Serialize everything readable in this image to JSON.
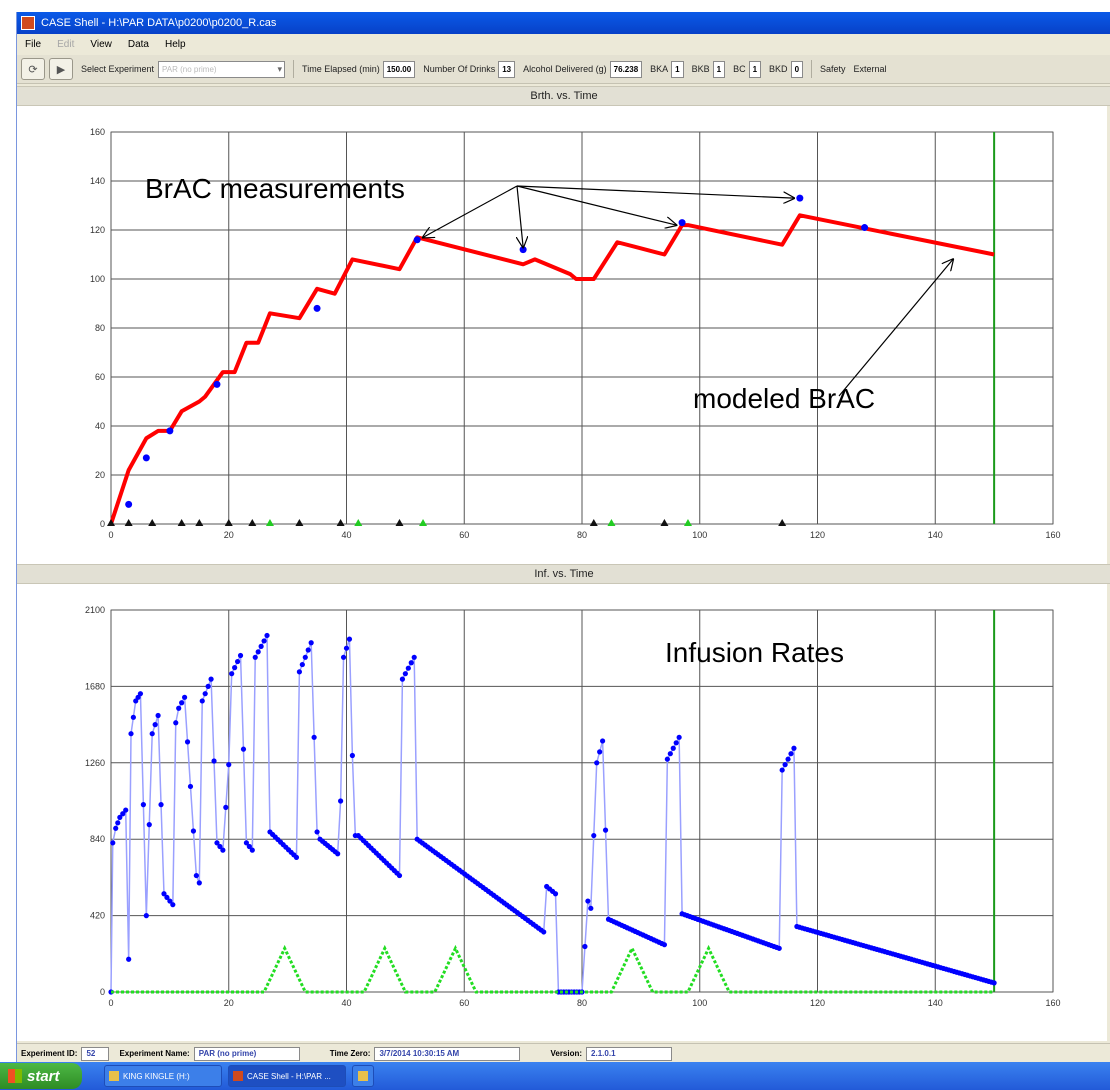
{
  "window": {
    "title": "CASE Shell - H:\\PAR DATA\\p0200\\p0200_R.cas"
  },
  "menu": [
    {
      "label": "File",
      "enabled": true
    },
    {
      "label": "Edit",
      "enabled": false
    },
    {
      "label": "View",
      "enabled": true
    },
    {
      "label": "Data",
      "enabled": true
    },
    {
      "label": "Help",
      "enabled": true
    }
  ],
  "toolbar": {
    "select_experiment_label": "Select Experiment",
    "select_experiment_value": "PAR (no prime)",
    "time_elapsed_label": "Time Elapsed (min)",
    "time_elapsed_value": "150.00",
    "number_of_drinks_label": "Number Of Drinks",
    "number_of_drinks_value": "13",
    "alcohol_delivered_label": "Alcohol Delivered (g)",
    "alcohol_delivered_value": "76.238",
    "bka_label": "BKA",
    "bka_value": "1",
    "bkb_label": "BKB",
    "bkb_value": "1",
    "bc_label": "BC",
    "bc_value": "1",
    "bkd_label": "BKD",
    "bkd_value": "0",
    "safety_label": "Safety",
    "external_label": "External"
  },
  "charts": {
    "top_title": "Brth. vs. Time",
    "bottom_title": "Inf. vs. Time",
    "annotations": {
      "brac_measurements": "BrAC measurements",
      "modeled_brac": "modeled BrAC",
      "infusion_rates": "Infusion Rates"
    }
  },
  "chart_data": [
    {
      "type": "line",
      "title": "Brth. vs. Time",
      "xlim": [
        0,
        160
      ],
      "ylim": [
        0,
        160
      ],
      "xticks": [
        0,
        20,
        40,
        60,
        80,
        100,
        120,
        140,
        160
      ],
      "yticks": [
        0,
        20,
        40,
        60,
        80,
        100,
        120,
        140,
        160
      ],
      "grid": true,
      "marker_line_x": 150,
      "series": [
        {
          "color": "#ff0000",
          "x": [
            0,
            3,
            6,
            8,
            10,
            12,
            15,
            16,
            19,
            21,
            23,
            25,
            27,
            32,
            35,
            38,
            41,
            49,
            52,
            70,
            72,
            78,
            79,
            82,
            86,
            94,
            97,
            98,
            114,
            117,
            150
          ],
          "y": [
            0,
            22,
            35,
            38,
            38,
            46,
            50,
            52,
            62,
            62,
            74,
            74,
            86,
            84,
            96,
            94,
            108,
            104,
            117,
            106,
            108,
            102,
            100,
            100,
            115,
            110,
            122,
            122,
            114,
            126,
            110
          ]
        },
        {
          "color": "#0000ff",
          "x": [
            3,
            6,
            10,
            18,
            35,
            52,
            70,
            97,
            117,
            128
          ],
          "y": [
            8,
            27,
            38,
            57,
            88,
            116,
            112,
            123,
            133,
            121
          ]
        }
      ],
      "event_markers": {
        "black_x": [
          0,
          3,
          7,
          12,
          15,
          20,
          24,
          32,
          39,
          49,
          82,
          94,
          114
        ],
        "green_x": [
          27,
          42,
          53,
          85,
          98
        ]
      }
    },
    {
      "type": "line",
      "title": "Inf. vs. Time",
      "xlim": [
        0,
        160
      ],
      "ylim": [
        0,
        2100
      ],
      "xticks": [
        0,
        20,
        40,
        60,
        80,
        100,
        120,
        140,
        160
      ],
      "yticks": [
        0,
        420,
        840,
        1260,
        1680,
        2100
      ],
      "grid": true,
      "marker_line_x": 150,
      "series": [
        {
          "color": "#0000ff",
          "x": [
            0,
            0.3,
            0.8,
            1.5,
            2.5,
            3,
            3.4,
            4.2,
            5,
            6,
            7,
            8,
            9,
            10.5,
            11,
            11.5,
            12.5,
            14.5,
            15,
            15.5,
            17,
            18,
            19,
            20,
            20.5,
            22,
            23,
            24,
            24.5,
            26.5,
            27,
            31.5,
            32,
            34,
            35,
            35.5,
            38.5,
            39,
            39.5,
            40.5,
            41,
            41.5,
            42,
            49,
            49.5,
            51.5,
            52,
            73.5,
            74,
            75.5,
            76,
            80,
            81,
            81.5,
            82.5,
            83.5,
            84.5,
            94,
            94.5,
            96.5,
            97,
            113.5,
            114,
            116,
            116.5,
            150
          ],
          "y": [
            0,
            820,
            900,
            960,
            1000,
            180,
            1420,
            1600,
            1640,
            420,
            1420,
            1520,
            540,
            480,
            1480,
            1560,
            1620,
            640,
            600,
            1600,
            1720,
            820,
            780,
            1250,
            1750,
            1850,
            820,
            780,
            1840,
            1960,
            880,
            740,
            1760,
            1920,
            880,
            840,
            760,
            1050,
            1840,
            1940,
            1300,
            860,
            860,
            640,
            1720,
            1840,
            840,
            330,
            580,
            540,
            0,
            0,
            500,
            460,
            1260,
            1380,
            400,
            260,
            1280,
            1400,
            430,
            240,
            1220,
            1340,
            360,
            50
          ]
        },
        {
          "color": "#22dd22",
          "x": [
            0,
            26,
            29.5,
            33,
            43,
            46.5,
            50,
            55,
            58.5,
            62,
            85,
            88.5,
            92,
            98,
            101.5,
            105,
            150
          ],
          "y": [
            0,
            0,
            240,
            0,
            0,
            240,
            0,
            0,
            240,
            0,
            0,
            240,
            0,
            0,
            240,
            0,
            0
          ]
        }
      ]
    }
  ],
  "status": {
    "experiment_id_label": "Experiment ID:",
    "experiment_id_value": "52",
    "experiment_name_label": "Experiment Name:",
    "experiment_name_value": "PAR (no prime)",
    "time_zero_label": "Time Zero:",
    "time_zero_value": "3/7/2014 10:30:15 AM",
    "version_label": "Version:",
    "version_value": "2.1.0.1"
  },
  "taskbar": {
    "start_label": "start",
    "items": [
      "KING KINGLE (H:)",
      "CASE Shell - H:\\PAR ..."
    ]
  }
}
